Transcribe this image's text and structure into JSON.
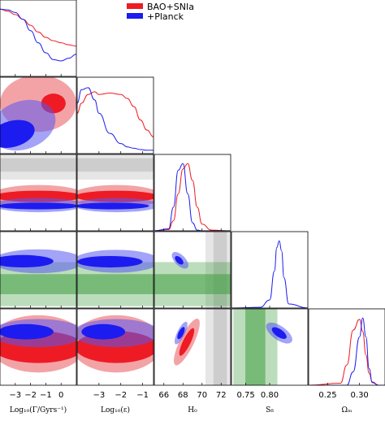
{
  "chart_data": {
    "type": "corner-plot",
    "parameters": [
      {
        "key": "loggamma",
        "label": "Log₁₀(Γ/Gyrs⁻¹)",
        "ticks": [
          "−3",
          "−2",
          "−1",
          "0"
        ],
        "range": [
          -4,
          1
        ]
      },
      {
        "key": "logeps",
        "label": "Log₁₀(ε)",
        "ticks": [
          "−3",
          "−2",
          "−1"
        ],
        "range": [
          -4,
          -0.5
        ]
      },
      {
        "key": "H0",
        "label": "H₀",
        "ticks": [
          "66",
          "68",
          "70",
          "72"
        ],
        "range": [
          65,
          73
        ]
      },
      {
        "key": "S8",
        "label": "S₈",
        "ticks": [
          "0.75",
          "0.80"
        ],
        "range": [
          0.72,
          0.88
        ]
      },
      {
        "key": "Om",
        "label": "Ωₘ",
        "ticks": [
          "0.25",
          "0.30"
        ],
        "range": [
          0.22,
          0.34
        ]
      }
    ],
    "series": [
      {
        "name": "BAO+SNIa",
        "color": "#ee1b24"
      },
      {
        "name": "+Planck",
        "color": "#1c1cf0"
      }
    ],
    "priors": {
      "H0": {
        "color": "#b8b8b8",
        "range": [
          71.2,
          72.6
        ]
      },
      "S8": {
        "color": "#3f9e3f",
        "range": [
          0.749,
          0.791
        ]
      }
    },
    "marginals": {
      "loggamma": {
        "x": [
          -4,
          -3.5,
          -3,
          -2.5,
          -2,
          -1.5,
          -1,
          -0.5,
          0,
          0.5,
          1
        ],
        "BAO+SNIa": [
          1.0,
          0.97,
          0.92,
          0.85,
          0.76,
          0.66,
          0.58,
          0.53,
          0.5,
          0.47,
          0.45
        ],
        "+Planck": [
          1.0,
          0.99,
          0.95,
          0.85,
          0.68,
          0.5,
          0.35,
          0.25,
          0.23,
          0.27,
          0.33
        ]
      },
      "logeps": {
        "x": [
          -4,
          -3.8,
          -3.5,
          -3.2,
          -3,
          -2.5,
          -2,
          -1.7,
          -1.4,
          -1.1,
          -0.8,
          -0.5
        ],
        "BAO+SNIa": [
          0.6,
          0.75,
          0.88,
          0.92,
          0.88,
          0.9,
          0.88,
          0.82,
          0.7,
          0.5,
          0.35,
          0.25
        ],
        "+Planck": [
          0.75,
          0.95,
          0.98,
          0.8,
          0.6,
          0.3,
          0.15,
          0.1,
          0.08,
          0.06,
          0.05,
          0.05
        ]
      },
      "H0": {
        "x": [
          65,
          66.5,
          67,
          67.5,
          68,
          68.5,
          69,
          69.5,
          70,
          71,
          73
        ],
        "BAO+SNIa": [
          0.0,
          0.02,
          0.15,
          0.55,
          0.92,
          1.0,
          0.75,
          0.35,
          0.1,
          0.01,
          0.0
        ],
        "+Planck": [
          0.0,
          0.03,
          0.35,
          0.9,
          1.0,
          0.55,
          0.12,
          0.01,
          0.0,
          0.0,
          0.0
        ]
      },
      "S8": {
        "x": [
          0.72,
          0.78,
          0.8,
          0.81,
          0.815,
          0.82,
          0.825,
          0.83,
          0.84,
          0.88
        ],
        "+Planck": [
          0.0,
          0.01,
          0.12,
          0.55,
          0.9,
          1.0,
          0.85,
          0.45,
          0.06,
          0.0
        ]
      },
      "Om": {
        "x": [
          0.22,
          0.27,
          0.28,
          0.29,
          0.3,
          0.305,
          0.31,
          0.315,
          0.32,
          0.33,
          0.34
        ],
        "BAO+SNIa": [
          0.0,
          0.03,
          0.3,
          0.82,
          0.98,
          0.8,
          0.45,
          0.18,
          0.05,
          0.0,
          0.0
        ],
        "+Planck": [
          0.0,
          0.0,
          0.0,
          0.2,
          0.72,
          1.0,
          0.72,
          0.25,
          0.04,
          0.0,
          0.0
        ]
      }
    },
    "contours": [
      {
        "x": "loggamma",
        "y": "logeps",
        "regions": [
          {
            "series": "BAO+SNIa",
            "level": "95",
            "cx": -1.5,
            "cy": -1.7,
            "rx": 2.5,
            "ry": 1.3,
            "angle": 0
          },
          {
            "series": "BAO+SNIa",
            "level": "68",
            "cx": -0.5,
            "cy": -1.7,
            "rx": 0.8,
            "ry": 0.45,
            "angle": 0
          },
          {
            "series": "+Planck",
            "level": "95",
            "cx": -2.5,
            "cy": -2.7,
            "rx": 2.2,
            "ry": 1.1,
            "angle": -20
          },
          {
            "series": "+Planck",
            "level": "68",
            "cx": -3.2,
            "cy": -3.1,
            "rx": 1.5,
            "ry": 0.6,
            "angle": -15
          }
        ]
      },
      {
        "x": "loggamma",
        "y": "H0",
        "regions": [
          {
            "series": "BAO+SNIa",
            "level": "95",
            "cx": -1.5,
            "cy": 68.6,
            "rx": 3.2,
            "ry": 1.2,
            "angle": 0
          },
          {
            "series": "BAO+SNIa",
            "level": "68",
            "cx": -1.5,
            "cy": 68.6,
            "rx": 2.9,
            "ry": 0.6,
            "angle": 0
          },
          {
            "series": "+Planck",
            "level": "95",
            "cx": -1.5,
            "cy": 67.7,
            "rx": 3.0,
            "ry": 0.75,
            "angle": 0
          },
          {
            "series": "+Planck",
            "level": "68",
            "cx": -1.5,
            "cy": 67.6,
            "rx": 2.7,
            "ry": 0.35,
            "angle": 0
          }
        ]
      },
      {
        "x": "loggamma",
        "y": "S8",
        "regions": [
          {
            "series": "+Planck",
            "level": "95",
            "cx": -1.5,
            "cy": 0.818,
            "rx": 3.0,
            "ry": 0.025,
            "angle": 0
          },
          {
            "series": "+Planck",
            "level": "68",
            "cx": -2.5,
            "cy": 0.818,
            "rx": 2.0,
            "ry": 0.013,
            "angle": 0
          }
        ]
      },
      {
        "x": "loggamma",
        "y": "Om",
        "regions": [
          {
            "series": "BAO+SNIa",
            "level": "95",
            "cx": -1.5,
            "cy": 0.285,
            "rx": 3.2,
            "ry": 0.045,
            "angle": 0
          },
          {
            "series": "BAO+SNIa",
            "level": "68",
            "cx": -1.5,
            "cy": 0.28,
            "rx": 3.0,
            "ry": 0.025,
            "angle": 0
          },
          {
            "series": "+Planck",
            "level": "95",
            "cx": -1.5,
            "cy": 0.302,
            "rx": 3.1,
            "ry": 0.022,
            "angle": 0
          },
          {
            "series": "+Planck",
            "level": "68",
            "cx": -2.3,
            "cy": 0.304,
            "rx": 1.8,
            "ry": 0.012,
            "angle": 0
          }
        ]
      },
      {
        "x": "logeps",
        "y": "H0",
        "regions": [
          {
            "series": "BAO+SNIa",
            "level": "95",
            "cx": -2.2,
            "cy": 68.6,
            "rx": 2.1,
            "ry": 1.2,
            "angle": 0
          },
          {
            "series": "BAO+SNIa",
            "level": "68",
            "cx": -2.2,
            "cy": 68.6,
            "rx": 1.9,
            "ry": 0.6,
            "angle": 0
          },
          {
            "series": "+Planck",
            "level": "95",
            "cx": -2.2,
            "cy": 67.7,
            "rx": 2.0,
            "ry": 0.75,
            "angle": 0
          },
          {
            "series": "+Planck",
            "level": "68",
            "cx": -2.4,
            "cy": 67.6,
            "rx": 1.7,
            "ry": 0.35,
            "angle": 0
          }
        ]
      },
      {
        "x": "logeps",
        "y": "S8",
        "regions": [
          {
            "series": "+Planck",
            "level": "95",
            "cx": -2.2,
            "cy": 0.818,
            "rx": 2.0,
            "ry": 0.024,
            "angle": 0
          },
          {
            "series": "+Planck",
            "level": "68",
            "cx": -2.5,
            "cy": 0.817,
            "rx": 1.5,
            "ry": 0.012,
            "angle": 0
          }
        ]
      },
      {
        "x": "logeps",
        "y": "Om",
        "regions": [
          {
            "series": "BAO+SNIa",
            "level": "95",
            "cx": -2.2,
            "cy": 0.285,
            "rx": 2.1,
            "ry": 0.045,
            "angle": 0
          },
          {
            "series": "BAO+SNIa",
            "level": "68",
            "cx": -2.2,
            "cy": 0.28,
            "rx": 1.9,
            "ry": 0.025,
            "angle": 0
          },
          {
            "series": "+Planck",
            "level": "95",
            "cx": -2.2,
            "cy": 0.302,
            "rx": 2.0,
            "ry": 0.022,
            "angle": 0
          },
          {
            "series": "+Planck",
            "level": "68",
            "cx": -2.8,
            "cy": 0.304,
            "rx": 1.0,
            "ry": 0.012,
            "angle": 0
          }
        ]
      },
      {
        "x": "H0",
        "y": "S8",
        "regions": [
          {
            "series": "+Planck",
            "level": "95",
            "cx": 67.7,
            "cy": 0.82,
            "rx": 1.1,
            "ry": 0.011,
            "angle": 45
          },
          {
            "series": "+Planck",
            "level": "68",
            "cx": 67.6,
            "cy": 0.82,
            "rx": 0.55,
            "ry": 0.006,
            "angle": 45
          }
        ]
      },
      {
        "x": "H0",
        "y": "Om",
        "regions": [
          {
            "series": "BAO+SNIa",
            "level": "95",
            "cx": 68.4,
            "cy": 0.288,
            "rx": 2.7,
            "ry": 0.011,
            "angle": -64
          },
          {
            "series": "BAO+SNIa",
            "level": "68",
            "cx": 68.4,
            "cy": 0.288,
            "rx": 1.6,
            "ry": 0.006,
            "angle": -64
          },
          {
            "series": "+Planck",
            "level": "95",
            "cx": 67.8,
            "cy": 0.302,
            "rx": 1.3,
            "ry": 0.006,
            "angle": -64
          },
          {
            "series": "+Planck",
            "level": "68",
            "cx": 67.8,
            "cy": 0.302,
            "rx": 0.7,
            "ry": 0.004,
            "angle": -64
          }
        ]
      },
      {
        "x": "S8",
        "y": "Om",
        "regions": [
          {
            "series": "+Planck",
            "level": "95",
            "cx": 0.82,
            "cy": 0.302,
            "rx": 0.032,
            "ry": 0.011,
            "angle": 35
          },
          {
            "series": "+Planck",
            "level": "68",
            "cx": 0.82,
            "cy": 0.302,
            "rx": 0.018,
            "ry": 0.006,
            "angle": 35
          }
        ]
      }
    ]
  }
}
